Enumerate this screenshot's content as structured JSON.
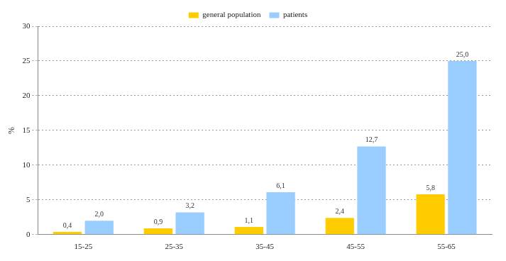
{
  "chart_data": {
    "type": "bar",
    "y_label": "%",
    "categories": [
      "15-25",
      "25-35",
      "35-45",
      "45-55",
      "55-65"
    ],
    "series": [
      {
        "name": "general population",
        "color": "#ffcc00",
        "values": [
          0.4,
          0.9,
          1.1,
          2.4,
          5.8
        ],
        "value_labels": [
          "0,4",
          "0,9",
          "1,1",
          "2,4",
          "5,8"
        ]
      },
      {
        "name": "patients",
        "color": "#99ccff",
        "values": [
          2.0,
          3.2,
          6.1,
          12.7,
          25.0
        ],
        "value_labels": [
          "2,0",
          "3,2",
          "6,1",
          "12,7",
          "25,0"
        ]
      }
    ],
    "ylim": [
      0,
      30
    ],
    "yticks": [
      0,
      5,
      10,
      15,
      20,
      25,
      30
    ],
    "grid": true,
    "legend": "top",
    "data_labels": true
  }
}
